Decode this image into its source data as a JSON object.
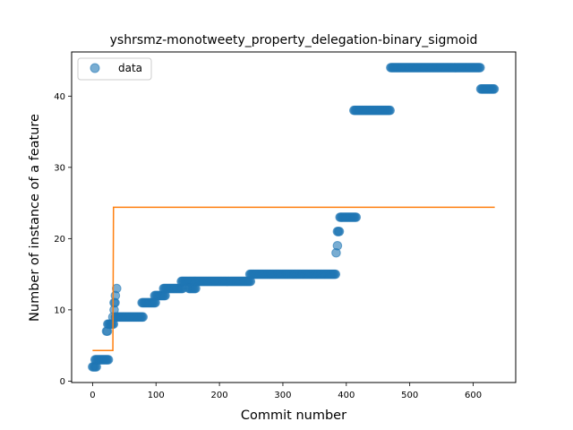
{
  "chart_data": {
    "type": "scatter",
    "title": "yshrsmz-monotweety_property_delegation-binary_sigmoid",
    "xlabel": "Commit number",
    "ylabel": "Number of instance of a feature",
    "xlim": [
      -33,
      667
    ],
    "ylim": [
      -0.2,
      46.2
    ],
    "x_ticks": [
      0,
      100,
      200,
      300,
      400,
      500,
      600
    ],
    "y_ticks": [
      0,
      10,
      20,
      30,
      40
    ],
    "grid": false,
    "legend": {
      "placement": "top-left",
      "entries": [
        "data"
      ]
    },
    "colors": {
      "data": "#1f77b4",
      "fit": "#ff7f0e"
    },
    "series": [
      {
        "name": "data",
        "kind": "scatter",
        "segments": [
          {
            "x0": 0,
            "x1": 6,
            "y": 2
          },
          {
            "x0": 4,
            "x1": 25,
            "y": 3
          },
          {
            "x0": 22,
            "x1": 24,
            "y": 7
          },
          {
            "x0": 24,
            "x1": 34,
            "y": 8
          },
          {
            "x0": 32,
            "x1": 32,
            "y": 9
          },
          {
            "x0": 34,
            "x1": 34,
            "y": 10
          },
          {
            "x0": 34,
            "x1": 36,
            "y": 11
          },
          {
            "x0": 36,
            "x1": 36,
            "y": 12
          },
          {
            "x0": 38,
            "x1": 38,
            "y": 13
          },
          {
            "x0": 36,
            "x1": 80,
            "y": 9
          },
          {
            "x0": 78,
            "x1": 100,
            "y": 11
          },
          {
            "x0": 98,
            "x1": 115,
            "y": 12
          },
          {
            "x0": 112,
            "x1": 142,
            "y": 13
          },
          {
            "x0": 140,
            "x1": 162,
            "y": 14
          },
          {
            "x0": 152,
            "x1": 163,
            "y": 13
          },
          {
            "x0": 162,
            "x1": 250,
            "y": 14
          },
          {
            "x0": 248,
            "x1": 384,
            "y": 15
          },
          {
            "x0": 384,
            "x1": 384,
            "y": 18
          },
          {
            "x0": 386,
            "x1": 386,
            "y": 19
          },
          {
            "x0": 386,
            "x1": 390,
            "y": 21
          },
          {
            "x0": 390,
            "x1": 416,
            "y": 23
          },
          {
            "x0": 412,
            "x1": 470,
            "y": 38
          },
          {
            "x0": 470,
            "x1": 612,
            "y": 44
          },
          {
            "x0": 612,
            "x1": 634,
            "y": 41
          }
        ]
      },
      {
        "name": "",
        "kind": "line",
        "x": [
          0,
          32,
          33,
          634
        ],
        "y": [
          4.3,
          4.3,
          24.4,
          24.4
        ]
      }
    ]
  }
}
